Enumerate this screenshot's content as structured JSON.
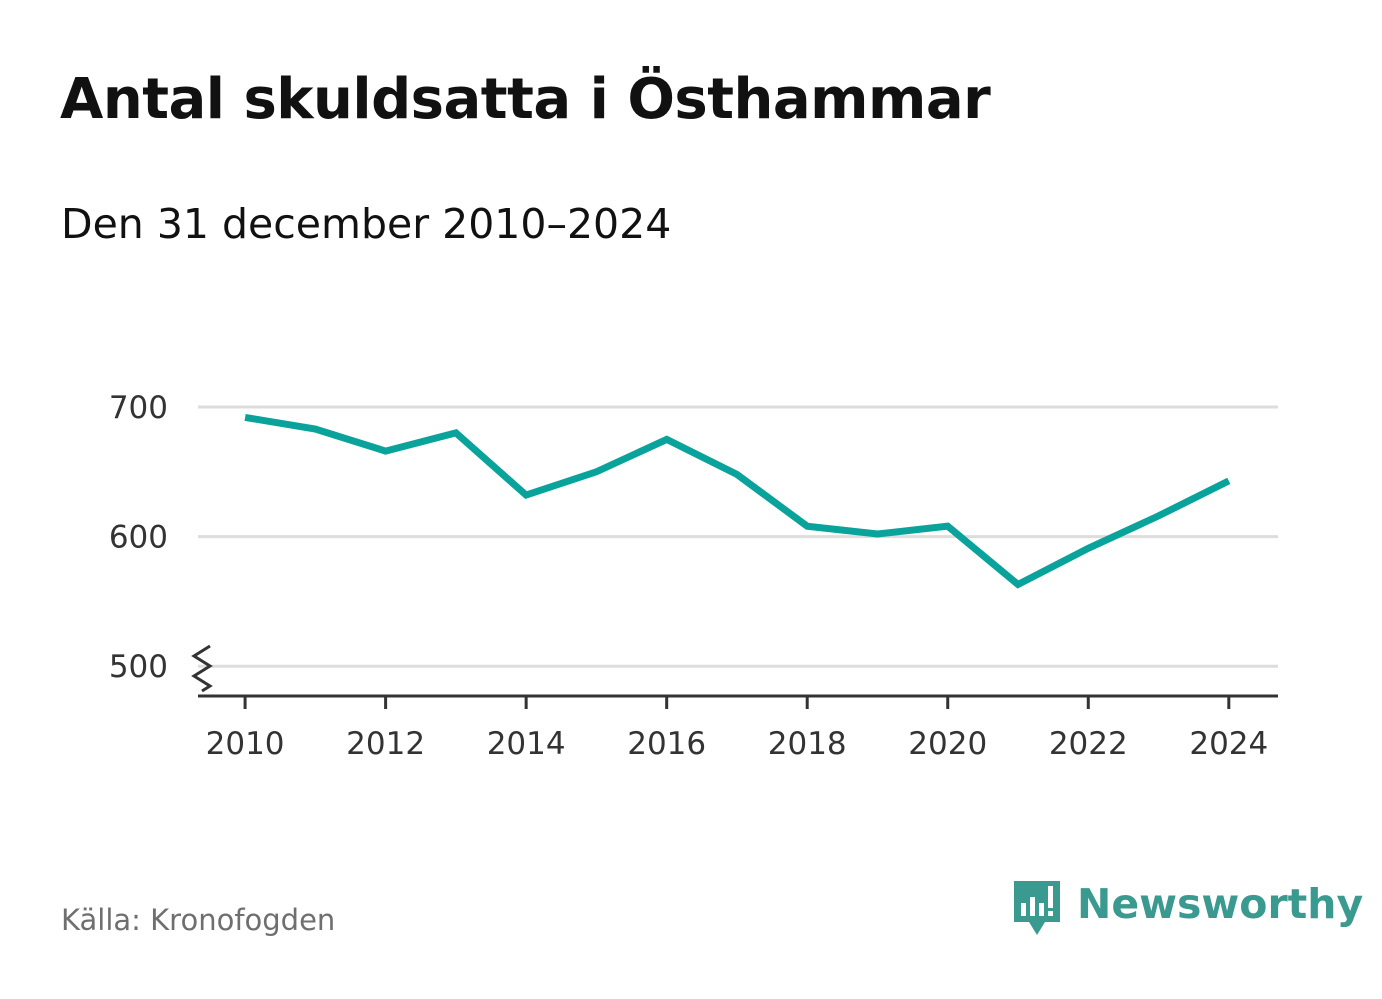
{
  "header": {
    "title": "Antal skuldsatta i Östhammar",
    "subtitle": "Den 31 december 2010–2024"
  },
  "footer": {
    "source": "Källa: Kronofogden",
    "brand": "Newsworthy"
  },
  "colors": {
    "line": "#0aa39b",
    "grid": "#dddddd",
    "axis": "#333333",
    "brand": "#3a9a8f"
  },
  "chart_data": {
    "type": "line",
    "title": "Antal skuldsatta i Östhammar",
    "subtitle": "Den 31 december 2010–2024",
    "xlabel": "",
    "ylabel": "",
    "x": [
      2010,
      2011,
      2012,
      2013,
      2014,
      2015,
      2016,
      2017,
      2018,
      2019,
      2020,
      2021,
      2022,
      2023,
      2024
    ],
    "series": [
      {
        "name": "Antal skuldsatta",
        "values": [
          692,
          683,
          666,
          680,
          632,
          650,
          675,
          648,
          608,
          602,
          608,
          563,
          591,
          616,
          643
        ]
      }
    ],
    "xticks": [
      "2010",
      "2012",
      "2014",
      "2016",
      "2018",
      "2020",
      "2022",
      "2024"
    ],
    "yticks": [
      "500",
      "600",
      "700"
    ],
    "ylim": [
      477,
      700
    ],
    "xlim": [
      2009.33,
      2024.7
    ],
    "axis_break": true,
    "grid": true,
    "legend": "none"
  }
}
